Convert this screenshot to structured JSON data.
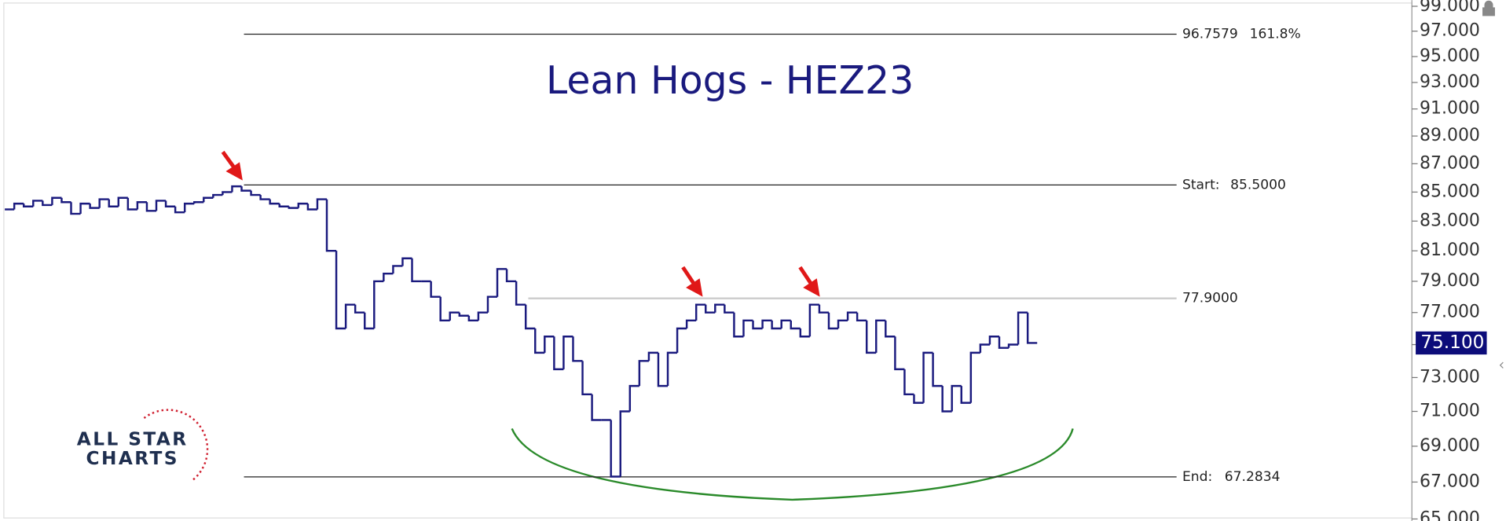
{
  "chart_data": {
    "type": "line",
    "title": "Lean Hogs - HEZ23",
    "color": "#1a1a7e",
    "log_scale": true,
    "values": [
      83.8,
      84.2,
      84.0,
      84.4,
      84.1,
      84.6,
      84.3,
      83.5,
      84.2,
      83.9,
      84.5,
      84.0,
      84.6,
      83.8,
      84.3,
      83.7,
      84.4,
      84.0,
      83.6,
      84.2,
      84.3,
      84.6,
      84.8,
      85.0,
      85.4,
      85.1,
      84.8,
      84.5,
      84.2,
      84.0,
      83.9,
      84.2,
      83.8,
      84.5,
      81,
      76,
      77.5,
      77,
      76,
      79,
      79.5,
      80,
      80.5,
      79,
      79,
      78,
      76.5,
      77,
      76.8,
      76.5,
      77,
      78,
      79.8,
      79,
      77.5,
      76,
      74.5,
      75.5,
      73.5,
      75.5,
      74,
      72,
      70.5,
      70.5,
      67.3,
      71,
      72.5,
      74,
      74.5,
      72.5,
      74.5,
      76,
      76.5,
      77.5,
      77,
      77.5,
      77,
      75.5,
      76.5,
      76,
      76.5,
      76,
      76.5,
      76,
      75.5,
      77.5,
      77,
      76,
      76.5,
      77,
      76.5,
      74.5,
      76.5,
      75.5,
      73.5,
      72,
      71.5,
      74.5,
      72.5,
      71,
      72.5,
      71.5,
      74.5,
      75,
      75.5,
      74.8,
      75,
      77,
      75.1
    ],
    "ylim": [
      64.9,
      99.5
    ],
    "yticks": [
      {
        "value": 65,
        "label": "65.000"
      },
      {
        "value": 67,
        "label": "67.000"
      },
      {
        "value": 69,
        "label": "69.000"
      },
      {
        "value": 71,
        "label": "71.000"
      },
      {
        "value": 73,
        "label": "73.000"
      },
      {
        "value": 75,
        "label": "75.000"
      },
      {
        "value": 77,
        "label": "77.000"
      },
      {
        "value": 79,
        "label": "79.000"
      },
      {
        "value": 81,
        "label": "81.000"
      },
      {
        "value": 83,
        "label": "83.000"
      },
      {
        "value": 85,
        "label": "85.000"
      },
      {
        "value": 87,
        "label": "87.000"
      },
      {
        "value": 89,
        "label": "89.000"
      },
      {
        "value": 91,
        "label": "91.000"
      },
      {
        "value": 93,
        "label": "93.000"
      },
      {
        "value": 95,
        "label": "95.000"
      },
      {
        "value": 97,
        "label": "97.000"
      },
      {
        "value": 99,
        "label": "99.000"
      }
    ],
    "levels": [
      {
        "value": 96.7579,
        "label": "96.7579",
        "percent": "161.8%"
      },
      {
        "value": 85.5,
        "prefix": "Start:",
        "label": "85.5000"
      },
      {
        "value": 77.9,
        "label": "77.9000"
      },
      {
        "value": 67.2834,
        "prefix": "End:",
        "label": "67.2834"
      }
    ],
    "last_price": {
      "value": 75.1,
      "label": "75.100"
    },
    "logo": [
      "ALL STAR",
      "CHARTS"
    ]
  }
}
